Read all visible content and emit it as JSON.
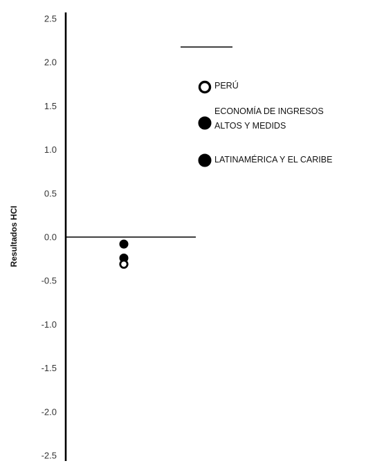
{
  "chart_data": {
    "type": "scatter",
    "title": "",
    "xlabel": "",
    "ylabel": "Resultados HCI",
    "ylim": [
      -2.5,
      2.5
    ],
    "yticks": [
      {
        "value": 2.5,
        "label": "2.5"
      },
      {
        "value": 2.0,
        "label": "2.0"
      },
      {
        "value": 1.5,
        "label": "1.5"
      },
      {
        "value": 1.0,
        "label": "1.0"
      },
      {
        "value": 0.5,
        "label": "0.5"
      },
      {
        "value": 0.0,
        "label": "0.0"
      },
      {
        "value": -0.5,
        "label": "-0.5"
      },
      {
        "value": -1.0,
        "label": "-1.0"
      },
      {
        "value": -1.5,
        "label": "-1.5"
      },
      {
        "value": -2.0,
        "label": "-2.0"
      },
      {
        "value": -2.5,
        "label": "-2.5"
      }
    ],
    "grid": false,
    "legend_position": "top-right",
    "series": [
      {
        "name": "PERÚ",
        "marker": "hollow-circle",
        "color": "#000000",
        "values": [
          -0.31
        ]
      },
      {
        "name": [
          "ECONOMÍA DE INGRESOS",
          "ALTOS Y MEDIDS"
        ],
        "marker": "filled-circle",
        "color": "#000000",
        "values": [
          -0.08
        ]
      },
      {
        "name": "LATINAMÉRICA Y EL CARIBE",
        "marker": "filled-circle",
        "color": "#000000",
        "values": [
          -0.24
        ]
      }
    ]
  }
}
